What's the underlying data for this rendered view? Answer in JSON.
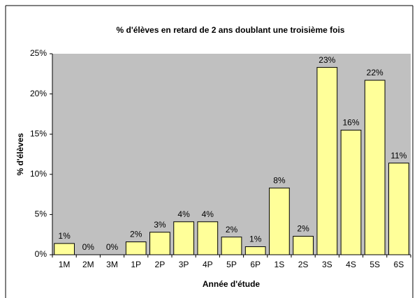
{
  "chart_data": {
    "type": "bar",
    "title": "% d'élèves en retard de 2 ans doublant une troisième fois",
    "ylabel": "% d'élèves",
    "xlabel": "Année d'étude",
    "categories": [
      "1M",
      "2M",
      "3M",
      "1P",
      "2P",
      "3P",
      "4P",
      "5P",
      "6P",
      "1S",
      "2S",
      "3S",
      "4S",
      "5S",
      "6S"
    ],
    "values": [
      1.4,
      0,
      0,
      1.6,
      2.8,
      4.1,
      4.1,
      2.2,
      1.0,
      8.3,
      2.3,
      23.3,
      15.5,
      21.7,
      11.4
    ],
    "value_labels": [
      "1%",
      "0%",
      "0%",
      "2%",
      "3%",
      "4%",
      "4%",
      "2%",
      "1%",
      "8%",
      "2%",
      "23%",
      "16%",
      "22%",
      "11%"
    ],
    "color": "#ffff99",
    "ylim": [
      0,
      25
    ],
    "yticks": [
      {
        "value": 0,
        "label": "0%"
      },
      {
        "value": 5,
        "label": "5%"
      },
      {
        "value": 10,
        "label": "10%"
      },
      {
        "value": 15,
        "label": "15%"
      },
      {
        "value": 20,
        "label": "20%"
      },
      {
        "value": 25,
        "label": "25%"
      }
    ]
  }
}
